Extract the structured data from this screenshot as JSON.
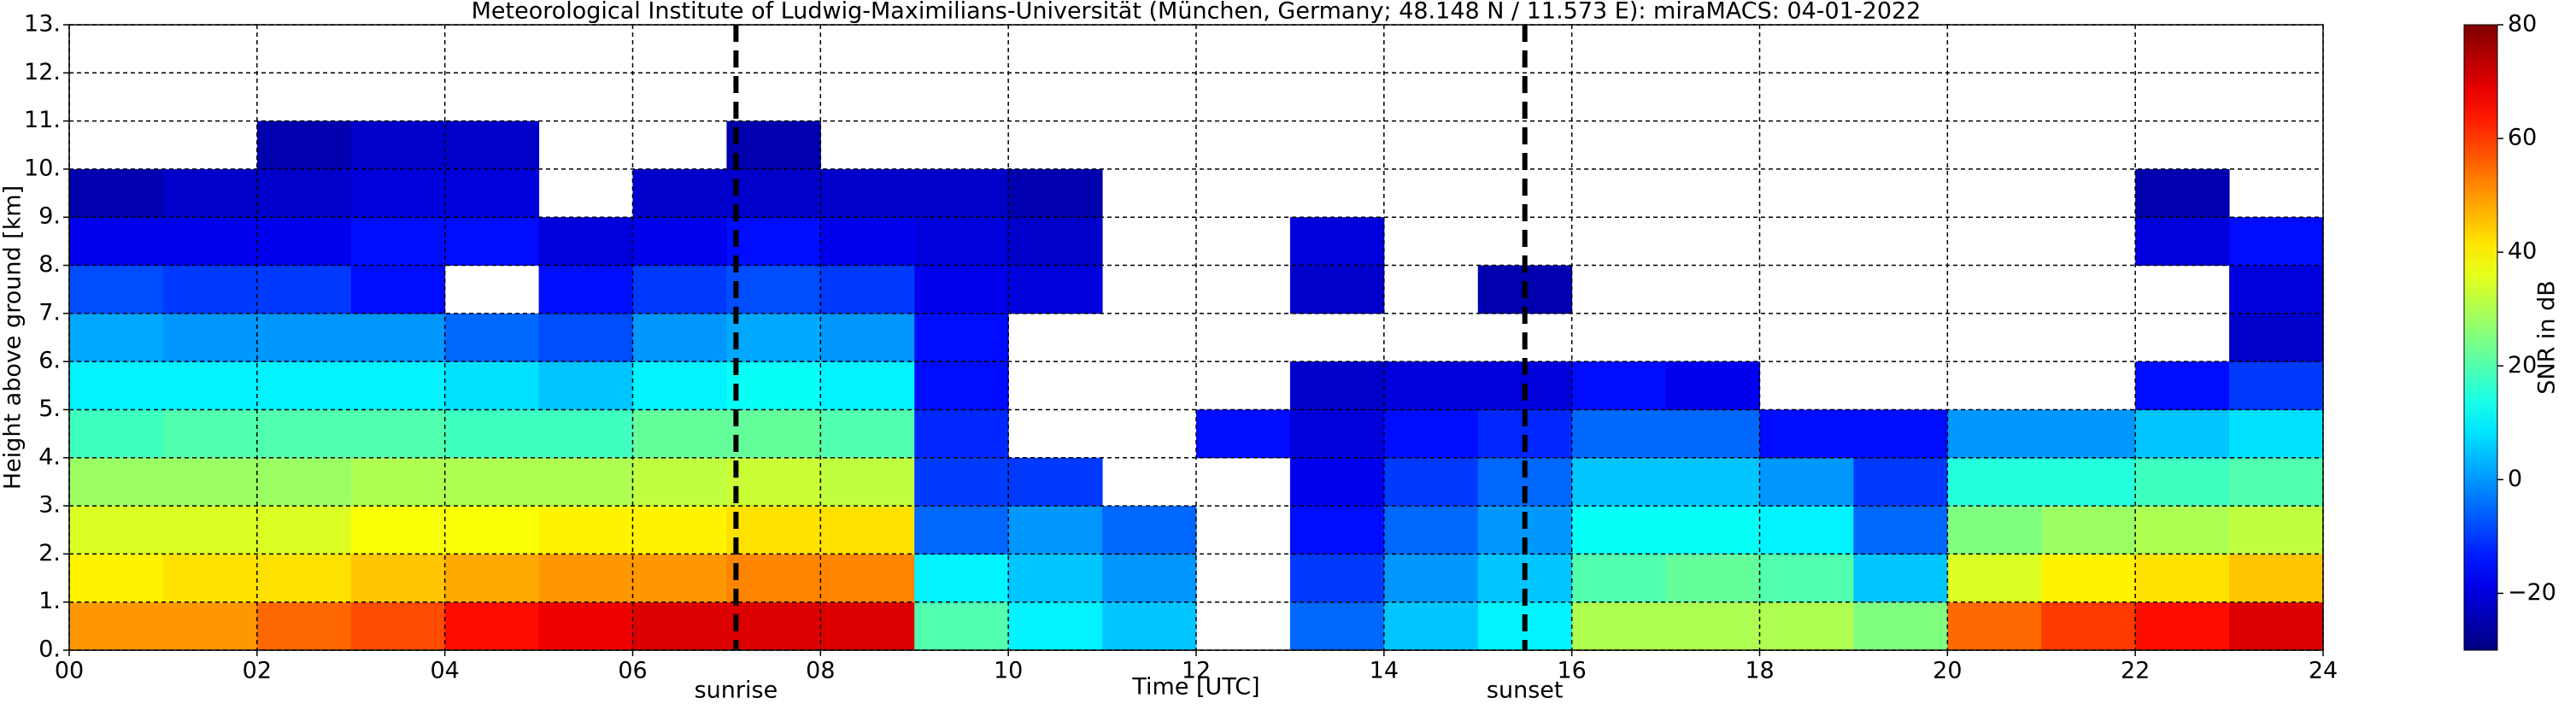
{
  "chart_data": {
    "type": "heatmap",
    "title": "Meteorological Institute of Ludwig-Maximilians-Universität (München, Germany; 48.148 N / 11.573 E):    miraMACS: 04-01-2022",
    "xlabel": "Time [UTC]",
    "ylabel": "Height above ground [km]",
    "xbins": [
      0,
      1,
      2,
      3,
      4,
      5,
      6,
      7,
      8,
      9,
      10,
      11,
      12,
      13,
      14,
      15,
      16,
      17,
      18,
      19,
      20,
      21,
      22,
      23,
      24
    ],
    "ybins": [
      0,
      1,
      2,
      3,
      4,
      5,
      6,
      7,
      8,
      9,
      10,
      11,
      12,
      13
    ],
    "values": [
      [
        50,
        50,
        55,
        58,
        65,
        68,
        70,
        70,
        70,
        20,
        10,
        5,
        null,
        -5,
        5,
        10,
        30,
        30,
        30,
        25,
        55,
        60,
        65,
        70
      ],
      [
        40,
        42,
        42,
        45,
        48,
        50,
        50,
        52,
        52,
        10,
        5,
        0,
        null,
        -10,
        0,
        5,
        20,
        22,
        20,
        5,
        35,
        40,
        42,
        45
      ],
      [
        35,
        35,
        35,
        38,
        38,
        40,
        40,
        42,
        42,
        -5,
        0,
        -5,
        null,
        -15,
        -5,
        0,
        12,
        12,
        10,
        -5,
        25,
        28,
        30,
        32
      ],
      [
        28,
        28,
        28,
        30,
        30,
        30,
        32,
        33,
        32,
        -10,
        -10,
        null,
        null,
        -18,
        -10,
        -5,
        5,
        5,
        0,
        -10,
        15,
        15,
        18,
        20
      ],
      [
        18,
        20,
        20,
        20,
        18,
        18,
        22,
        22,
        20,
        -12,
        null,
        null,
        -15,
        -20,
        -15,
        -12,
        -5,
        -5,
        -15,
        -15,
        0,
        0,
        5,
        8
      ],
      [
        10,
        10,
        10,
        10,
        8,
        5,
        10,
        12,
        10,
        -15,
        null,
        null,
        null,
        -22,
        -20,
        -20,
        -15,
        -18,
        null,
        null,
        null,
        null,
        -15,
        -10
      ],
      [
        2,
        0,
        0,
        0,
        -5,
        -8,
        0,
        2,
        0,
        -15,
        null,
        null,
        null,
        null,
        null,
        null,
        null,
        null,
        null,
        null,
        null,
        null,
        null,
        -22
      ],
      [
        -8,
        -10,
        -10,
        -15,
        null,
        -15,
        -10,
        -8,
        -10,
        -18,
        -20,
        null,
        null,
        -22,
        null,
        -25,
        null,
        null,
        null,
        null,
        null,
        null,
        null,
        -20
      ],
      [
        -18,
        -18,
        -18,
        -15,
        -15,
        -20,
        -18,
        -15,
        -18,
        -20,
        -22,
        null,
        null,
        -20,
        null,
        null,
        null,
        null,
        null,
        null,
        null,
        null,
        -20,
        -15
      ],
      [
        -25,
        -22,
        -22,
        -20,
        -20,
        null,
        -22,
        -22,
        -22,
        -22,
        -25,
        null,
        null,
        null,
        null,
        null,
        null,
        null,
        null,
        null,
        null,
        null,
        -25,
        null
      ],
      [
        null,
        null,
        -25,
        -22,
        -22,
        null,
        null,
        -25,
        null,
        null,
        null,
        null,
        null,
        null,
        null,
        null,
        null,
        null,
        null,
        null,
        null,
        null,
        null,
        null
      ],
      [
        null,
        null,
        null,
        null,
        null,
        null,
        null,
        null,
        null,
        null,
        null,
        null,
        null,
        null,
        null,
        null,
        null,
        null,
        null,
        null,
        null,
        null,
        null,
        null
      ],
      [
        null,
        null,
        null,
        null,
        null,
        null,
        null,
        null,
        null,
        null,
        null,
        null,
        null,
        null,
        null,
        null,
        null,
        null,
        null,
        null,
        null,
        null,
        null,
        null
      ]
    ],
    "colormap": "jet",
    "xlim": [
      0,
      24
    ],
    "ylim": [
      0,
      13
    ],
    "xticks": [
      {
        "value": 0,
        "label": "00"
      },
      {
        "value": 2,
        "label": "02"
      },
      {
        "value": 4,
        "label": "04"
      },
      {
        "value": 6,
        "label": "06"
      },
      {
        "value": 8,
        "label": "08"
      },
      10,
      12,
      14,
      16,
      18,
      20,
      22,
      24
    ],
    "yticks": [
      {
        "value": 0,
        "label": "0."
      },
      {
        "value": 1,
        "label": "1."
      },
      {
        "value": 2,
        "label": "2."
      },
      {
        "value": 3,
        "label": "3."
      },
      {
        "value": 4,
        "label": "4."
      },
      {
        "value": 5,
        "label": "5."
      },
      {
        "value": 6,
        "label": "6."
      },
      {
        "value": 7,
        "label": "7."
      },
      {
        "value": 8,
        "label": "8."
      },
      {
        "value": 9,
        "label": "9."
      },
      {
        "value": 10,
        "label": "10."
      },
      {
        "value": 11,
        "label": "11."
      },
      {
        "value": 12,
        "label": "12."
      },
      {
        "value": 13,
        "label": "13."
      }
    ],
    "grid": true,
    "annotations": [
      {
        "x": 7.1,
        "label": "sunrise"
      },
      {
        "x": 15.5,
        "label": "sunset"
      }
    ],
    "colorbar": {
      "label": "SNR in dB",
      "lim": [
        -30,
        80
      ],
      "ticks": [
        {
          "value": -20,
          "label": "−20"
        },
        0,
        20,
        40,
        60,
        80
      ]
    }
  }
}
